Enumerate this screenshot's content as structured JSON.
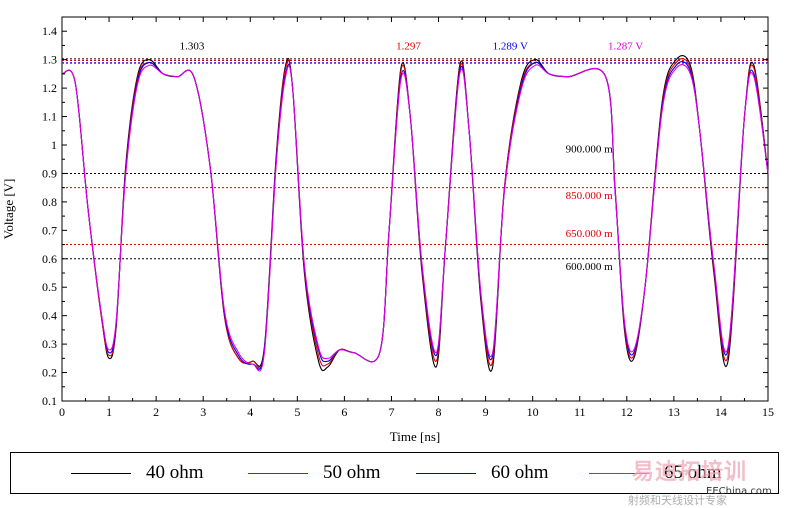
{
  "chart_data": {
    "type": "line",
    "xlabel": "Time [ns]",
    "ylabel": "Voltage [V]",
    "xlim": [
      0,
      15
    ],
    "ylim": [
      0.1,
      1.45
    ],
    "xticks": [
      "0",
      "1",
      "2",
      "3",
      "4",
      "5",
      "6",
      "7",
      "8",
      "9",
      "10",
      "11",
      "12",
      "13",
      "14",
      "15"
    ],
    "yticks": [
      "0.1",
      "0.2",
      "0.3",
      "0.4",
      "0.5",
      "0.6",
      "0.7",
      "0.8",
      "0.9",
      "1",
      "1.1",
      "1.2",
      "1.3",
      "1.4"
    ],
    "grid": false,
    "legend_position": "bottom",
    "waveform_key_points": {
      "x": [
        0,
        0.28,
        0.55,
        0.85,
        1.0,
        1.15,
        1.35,
        1.6,
        1.85,
        2.15,
        2.45,
        2.8,
        3.15,
        3.45,
        3.75,
        4.05,
        4.3,
        4.55,
        4.75,
        4.9,
        5.15,
        5.45,
        5.65,
        5.9,
        6.2,
        6.75,
        6.95,
        7.2,
        7.4,
        7.65,
        7.95,
        8.15,
        8.45,
        8.65,
        8.9,
        9.15,
        9.4,
        9.75,
        10.05,
        10.35,
        10.75,
        11.55,
        11.75,
        11.95,
        12.15,
        12.4,
        12.75,
        13.05,
        13.35,
        13.55,
        13.85,
        14.15,
        14.5,
        14.7,
        15.0
      ],
      "series_y": [
        {
          "name": "40 ohm",
          "values": [
            1.25,
            1.22,
            0.78,
            0.38,
            0.25,
            0.36,
            0.92,
            1.24,
            1.3,
            1.25,
            1.24,
            1.24,
            0.92,
            0.4,
            0.25,
            0.24,
            0.29,
            0.96,
            1.28,
            1.2,
            0.55,
            0.24,
            0.22,
            0.28,
            0.27,
            0.27,
            0.7,
            1.27,
            1.1,
            0.55,
            0.22,
            0.65,
            1.28,
            1.05,
            0.45,
            0.22,
            0.85,
            1.22,
            1.3,
            1.25,
            1.24,
            1.24,
            0.85,
            0.35,
            0.25,
            0.52,
            1.15,
            1.3,
            1.28,
            1.05,
            0.55,
            0.24,
            1.1,
            1.28,
            0.9
          ]
        },
        {
          "name": "50 ohm",
          "values": [
            1.25,
            1.22,
            0.78,
            0.38,
            0.26,
            0.36,
            0.91,
            1.23,
            1.29,
            1.25,
            1.24,
            1.24,
            0.92,
            0.4,
            0.25,
            0.24,
            0.28,
            0.95,
            1.27,
            1.2,
            0.56,
            0.26,
            0.23,
            0.28,
            0.27,
            0.27,
            0.7,
            1.26,
            1.1,
            0.56,
            0.24,
            0.65,
            1.27,
            1.05,
            0.46,
            0.24,
            0.85,
            1.21,
            1.29,
            1.25,
            1.24,
            1.24,
            0.85,
            0.36,
            0.26,
            0.52,
            1.14,
            1.29,
            1.27,
            1.05,
            0.56,
            0.26,
            1.1,
            1.27,
            0.9
          ]
        },
        {
          "name": "60 ohm",
          "values": [
            1.25,
            1.22,
            0.78,
            0.39,
            0.27,
            0.37,
            0.9,
            1.22,
            1.29,
            1.25,
            1.24,
            1.24,
            0.92,
            0.41,
            0.26,
            0.23,
            0.28,
            0.94,
            1.25,
            1.2,
            0.57,
            0.28,
            0.24,
            0.28,
            0.27,
            0.27,
            0.7,
            1.24,
            1.1,
            0.57,
            0.26,
            0.65,
            1.26,
            1.05,
            0.47,
            0.26,
            0.84,
            1.2,
            1.29,
            1.25,
            1.24,
            1.24,
            0.84,
            0.37,
            0.27,
            0.52,
            1.13,
            1.28,
            1.26,
            1.05,
            0.57,
            0.28,
            1.1,
            1.25,
            0.9
          ]
        },
        {
          "name": "65 ohm",
          "values": [
            1.25,
            1.22,
            0.78,
            0.39,
            0.28,
            0.38,
            0.89,
            1.21,
            1.28,
            1.25,
            1.24,
            1.24,
            0.92,
            0.42,
            0.27,
            0.23,
            0.27,
            0.93,
            1.24,
            1.2,
            0.58,
            0.29,
            0.25,
            0.28,
            0.27,
            0.27,
            0.7,
            1.23,
            1.1,
            0.58,
            0.27,
            0.65,
            1.25,
            1.05,
            0.48,
            0.27,
            0.84,
            1.19,
            1.28,
            1.25,
            1.24,
            1.24,
            0.84,
            0.38,
            0.28,
            0.52,
            1.12,
            1.27,
            1.25,
            1.05,
            0.58,
            0.29,
            1.1,
            1.24,
            0.9
          ]
        }
      ]
    },
    "series": [
      {
        "name": "40 ohm",
        "color": "#000000"
      },
      {
        "name": "50 ohm",
        "color": "#e00000"
      },
      {
        "name": "60 ohm",
        "color": "#0000ee"
      },
      {
        "name": "65 ohm",
        "color": "#e000e0"
      }
    ],
    "reference_lines": [
      {
        "y": 1.303,
        "color": "#000000"
      },
      {
        "y": 1.297,
        "color": "#e00000"
      },
      {
        "y": 1.289,
        "color": "#0000ee"
      },
      {
        "y": 1.287,
        "color": "#e000e0"
      },
      {
        "y": 0.9,
        "color": "#000000"
      },
      {
        "y": 0.85,
        "color": "#e00000"
      },
      {
        "y": 0.65,
        "color": "#e00000"
      },
      {
        "y": 0.6,
        "color": "#000000"
      }
    ],
    "annotations": [
      {
        "text": "1.303",
        "x": 2.5,
        "y": 1.35,
        "color": "#000000"
      },
      {
        "text": "1.297",
        "x": 7.1,
        "y": 1.35,
        "color": "#e00000"
      },
      {
        "text": "1.289 V",
        "x": 9.15,
        "y": 1.35,
        "color": "#0000ee"
      },
      {
        "text": "1.287 V",
        "x": 11.6,
        "y": 1.35,
        "color": "#e000e0"
      },
      {
        "text": "900.000 m",
        "x": 10.7,
        "y": 0.988,
        "color": "#000000"
      },
      {
        "text": "850.000 m",
        "x": 10.7,
        "y": 0.825,
        "color": "#e00000"
      },
      {
        "text": "650.000 m",
        "x": 10.7,
        "y": 0.69,
        "color": "#e00000"
      },
      {
        "text": "600.000 m",
        "x": 10.7,
        "y": 0.575,
        "color": "#000000"
      }
    ]
  },
  "watermark": {
    "title": "易迪拓培训",
    "url": "EEChina.com",
    "subtitle": "射频和天线设计专家"
  }
}
